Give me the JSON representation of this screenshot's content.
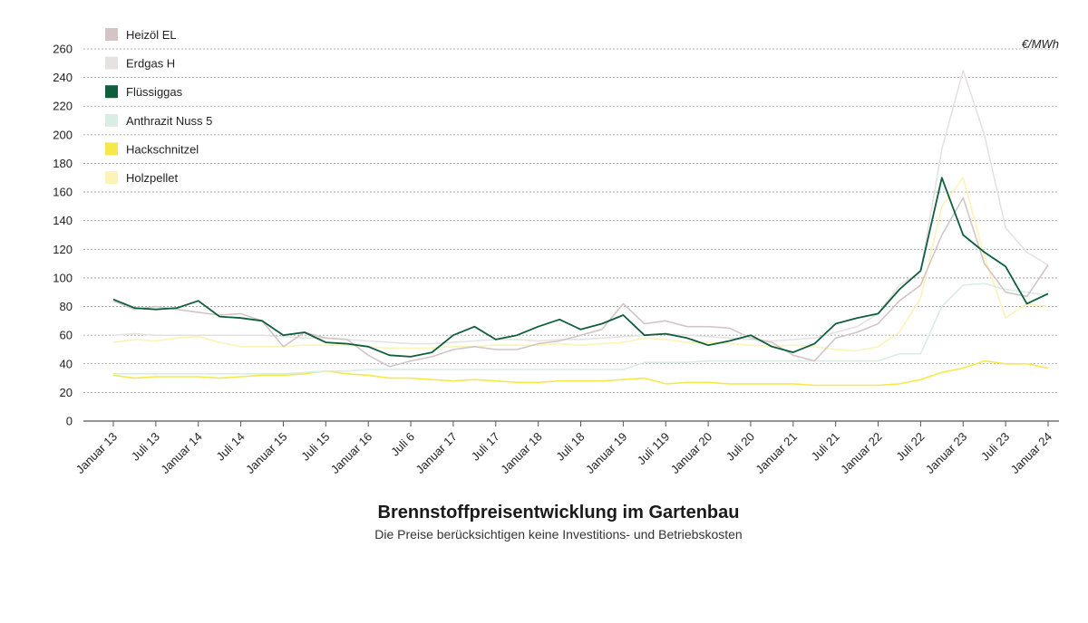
{
  "chart_data": {
    "type": "line",
    "title": "Brennstoffpreisentwicklung im Gartenbau",
    "subtitle": "Die Preise berücksichtigen keine Investitions- und Betriebskosten",
    "unit": "€/MWh",
    "ylim": [
      0,
      260
    ],
    "yticks": [
      0,
      20,
      40,
      60,
      80,
      100,
      120,
      140,
      160,
      180,
      200,
      220,
      240,
      260
    ],
    "grid": true,
    "legend_position": "top-left",
    "x_tick_labels": [
      "Januar 13",
      "Juli 13",
      "Januar 14",
      "Juli 14",
      "Januar 15",
      "Juli 15",
      "Januar 16",
      "Juli 6",
      "Januar 17",
      "Juli 17",
      "Januar 18",
      "Juli 18",
      "Januar 19",
      "Juli 119",
      "Januar 20",
      "Juli 20",
      "Januar 21",
      "Juli 21",
      "Januar 22",
      "Juli 22",
      "Januar 23",
      "Juli 23",
      "Januar 24"
    ],
    "x": [
      "Januar 13",
      "Apr 13",
      "Juli 13",
      "Okt 13",
      "Januar 14",
      "Apr 14",
      "Juli 14",
      "Okt 14",
      "Januar 15",
      "Apr 15",
      "Juli 15",
      "Okt 15",
      "Januar 16",
      "Apr 16",
      "Juli 6",
      "Okt 16",
      "Januar 17",
      "Apr 17",
      "Juli 17",
      "Okt 17",
      "Januar 18",
      "Apr 18",
      "Juli 18",
      "Okt 18",
      "Januar 19",
      "Apr 19",
      "Juli 119",
      "Okt 19",
      "Januar 20",
      "Apr 20",
      "Juli 20",
      "Okt 20",
      "Januar 21",
      "Apr 21",
      "Juli 21",
      "Okt 21",
      "Januar 22",
      "Apr 22",
      "Juli 22",
      "Okt 22",
      "Januar 23",
      "Apr 23",
      "Juli 23",
      "Okt 23",
      "Januar 24"
    ],
    "series": [
      {
        "name": "Heizöl EL",
        "color": "#d3c5c5",
        "values": [
          84,
          78,
          80,
          78,
          76,
          74,
          75,
          70,
          52,
          62,
          58,
          57,
          46,
          38,
          42,
          45,
          50,
          52,
          50,
          50,
          54,
          56,
          60,
          64,
          82,
          68,
          70,
          66,
          66,
          65,
          58,
          55,
          46,
          42,
          58,
          62,
          68,
          84,
          95,
          130,
          156,
          110,
          90,
          87,
          109
        ]
      },
      {
        "name": "Erdgas H",
        "color": "#e6e2e2",
        "values": [
          60,
          61,
          60,
          60,
          60,
          60,
          60,
          60,
          59,
          58,
          58,
          57,
          56,
          55,
          54,
          54,
          55,
          56,
          57,
          57,
          56,
          57,
          57,
          58,
          59,
          60,
          61,
          60,
          59,
          58,
          57,
          56,
          57,
          58,
          62,
          66,
          75,
          95,
          104,
          190,
          245,
          200,
          135,
          118,
          109
        ]
      },
      {
        "name": "Flüssiggas",
        "color": "#0f5e3c",
        "values": [
          85,
          79,
          78,
          79,
          84,
          73,
          72,
          70,
          60,
          62,
          55,
          54,
          52,
          46,
          45,
          48,
          60,
          66,
          57,
          60,
          66,
          71,
          64,
          68,
          74,
          60,
          61,
          58,
          53,
          56,
          60,
          52,
          48,
          54,
          68,
          72,
          75,
          92,
          105,
          170,
          130,
          118,
          108,
          82,
          89
        ]
      },
      {
        "name": "Anthrazit Nuss 5",
        "color": "#d9ede4",
        "values": [
          33,
          33,
          33,
          33,
          33,
          33,
          33,
          33,
          33,
          34,
          35,
          35,
          36,
          36,
          36,
          36,
          36,
          36,
          36,
          36,
          36,
          36,
          36,
          36,
          36,
          41,
          41,
          41,
          42,
          42,
          42,
          42,
          42,
          42,
          42,
          42,
          42,
          47,
          47,
          80,
          95,
          96,
          92,
          90,
          88
        ]
      },
      {
        "name": "Hackschnitzel",
        "color": "#f7e84a",
        "values": [
          32,
          30,
          31,
          31,
          31,
          30,
          31,
          32,
          32,
          33,
          35,
          33,
          32,
          30,
          30,
          29,
          28,
          29,
          28,
          27,
          27,
          28,
          28,
          28,
          29,
          30,
          26,
          27,
          27,
          26,
          26,
          26,
          26,
          25,
          25,
          25,
          25,
          26,
          29,
          34,
          37,
          42,
          40,
          40,
          37
        ]
      },
      {
        "name": "Holzpellet",
        "color": "#fbf3b8",
        "values": [
          55,
          57,
          56,
          58,
          59,
          55,
          52,
          52,
          52,
          53,
          53,
          53,
          52,
          51,
          51,
          51,
          52,
          52,
          53,
          53,
          53,
          54,
          53,
          54,
          55,
          58,
          57,
          55,
          55,
          54,
          53,
          52,
          53,
          52,
          50,
          49,
          52,
          62,
          86,
          150,
          170,
          115,
          72,
          82,
          80
        ]
      }
    ]
  }
}
